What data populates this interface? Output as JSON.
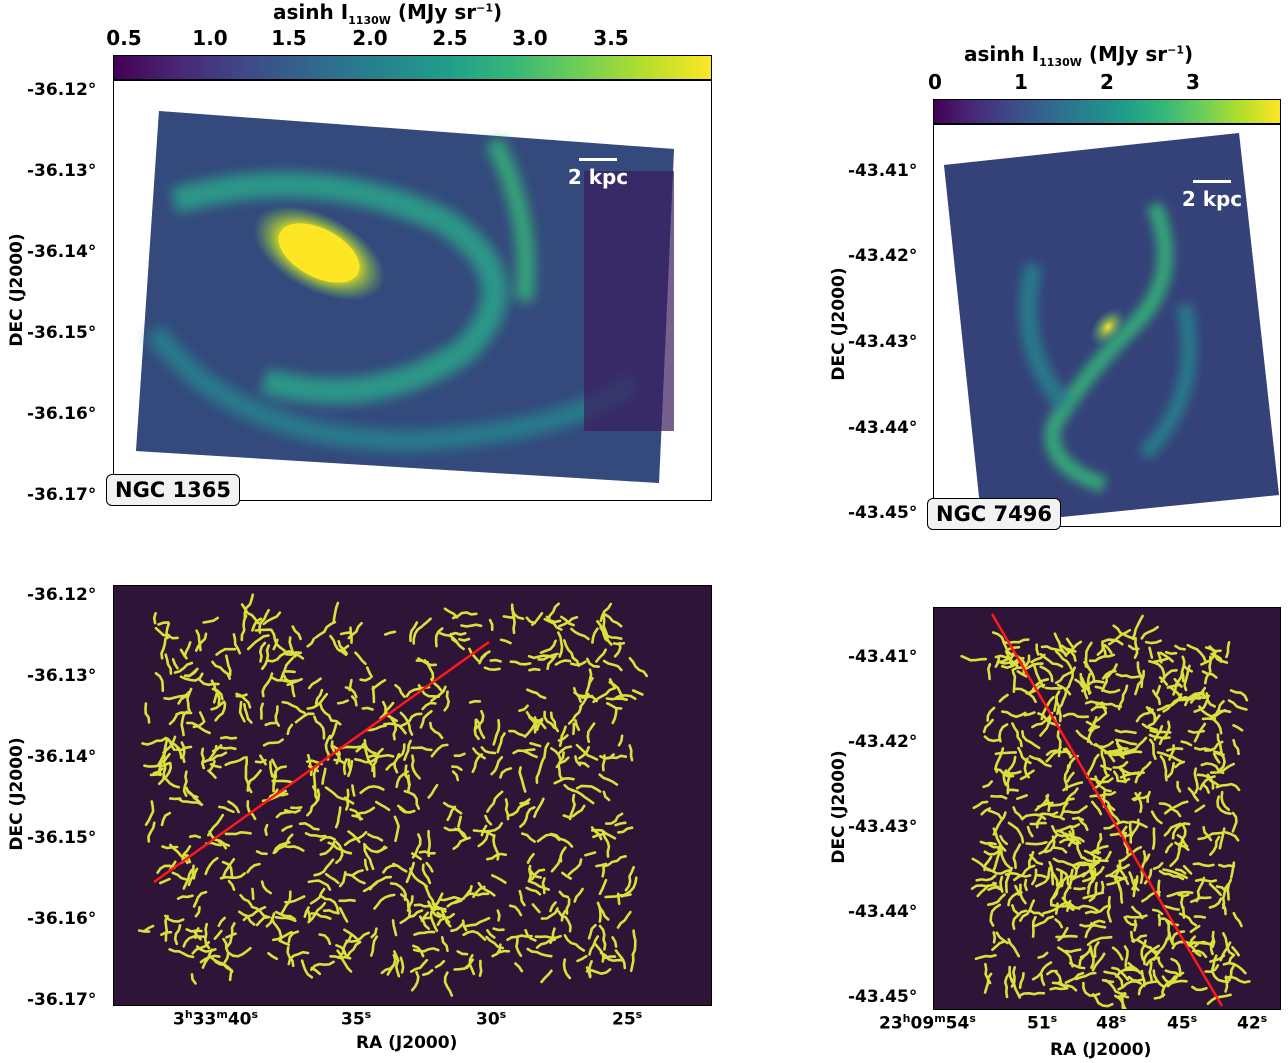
{
  "panels": {
    "ngc1365": {
      "label": "NGC 1365",
      "scalebar": "2 kpc",
      "colorbar": {
        "title": "asinh I",
        "title_sub": "1130W",
        "title_unit": "(MJy sr",
        "title_sup": "−1",
        "title_close": ")",
        "ticks": [
          "0.5",
          "1.0",
          "1.5",
          "2.0",
          "2.5",
          "3.0",
          "3.5"
        ]
      },
      "dec_ticks": [
        "-36.12°",
        "-36.13°",
        "-36.14°",
        "-36.15°",
        "-36.16°",
        "-36.17°"
      ],
      "ylabel": "DEC (J2000)"
    },
    "ngc7496": {
      "label": "NGC 7496",
      "scalebar": "2 kpc",
      "colorbar": {
        "title": "asinh I",
        "title_sub": "1130W",
        "title_unit": "(MJy sr",
        "title_sup": "−1",
        "title_close": ")",
        "ticks": [
          "0",
          "1",
          "2",
          "3"
        ]
      },
      "dec_ticks": [
        "-43.41°",
        "-43.42°",
        "-43.43°",
        "-43.44°",
        "-43.45°"
      ],
      "ylabel": "DEC (J2000)"
    },
    "ngc1365_skel": {
      "dec_ticks": [
        "-36.12°",
        "-36.13°",
        "-36.14°",
        "-36.15°",
        "-36.16°",
        "-36.17°"
      ],
      "ra_ticks": [
        {
          "h": "3",
          "m": "33",
          "s": "40"
        },
        {
          "s": "35"
        },
        {
          "s": "30"
        },
        {
          "s": "25"
        }
      ],
      "ylabel": "DEC (J2000)",
      "xlabel": "RA (J2000)"
    },
    "ngc7496_skel": {
      "dec_ticks": [
        "-43.41°",
        "-43.42°",
        "-43.43°",
        "-43.44°",
        "-43.45°"
      ],
      "ra_ticks": [
        {
          "h": "23",
          "m": "09",
          "s": "54"
        },
        {
          "s": "51"
        },
        {
          "s": "48"
        },
        {
          "s": "45"
        },
        {
          "s": "42"
        }
      ],
      "ylabel": "DEC (J2000)",
      "xlabel": "RA (J2000)"
    }
  },
  "colors": {
    "skeleton_bg": "#2e1437",
    "filament": "#d8e23a",
    "line": "#ff1a1a"
  }
}
